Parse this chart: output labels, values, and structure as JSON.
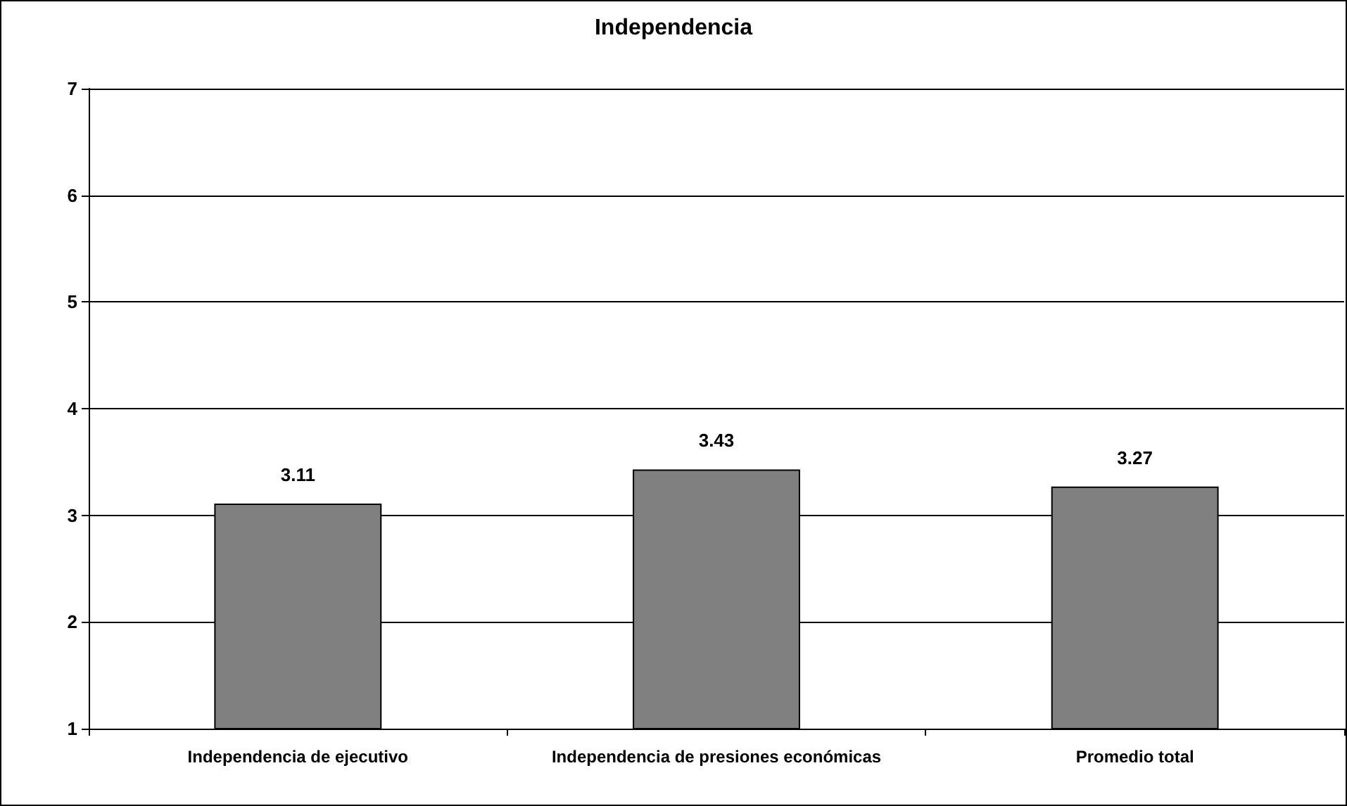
{
  "chart_data": {
    "type": "bar",
    "title": "Independencia",
    "categories": [
      "Independencia de ejecutivo",
      "Independencia de presiones económicas",
      "Promedio total"
    ],
    "values": [
      3.11,
      3.43,
      3.27
    ],
    "color": "#808080",
    "ylim": [
      1,
      7
    ],
    "yticks": [
      1,
      2,
      3,
      4,
      5,
      6,
      7
    ],
    "grid": "y",
    "data_labels": true
  }
}
